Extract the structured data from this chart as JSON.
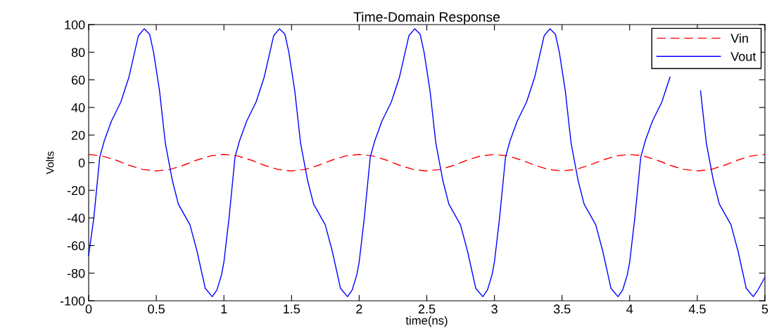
{
  "chart_data": {
    "type": "line",
    "title": "Time-Domain Response",
    "xlabel": "time(ns)",
    "ylabel": "Volts",
    "xlim": [
      0,
      5
    ],
    "ylim": [
      -100,
      100
    ],
    "xticks": [
      0,
      0.5,
      1,
      1.5,
      2,
      2.5,
      3,
      3.5,
      4,
      4.5,
      5
    ],
    "yticks": [
      -100,
      -80,
      -60,
      -40,
      -20,
      0,
      20,
      40,
      60,
      80,
      100
    ],
    "grid": false,
    "legend": "top right",
    "marker": "none",
    "series": [
      {
        "name": "Vin",
        "color": "#ff0000",
        "line_style": "dashed",
        "x": [
          0,
          0.1,
          0.2,
          0.3,
          0.4,
          0.5,
          0.6,
          0.7,
          0.8,
          0.9,
          1,
          1.1,
          1.2,
          1.3,
          1.4,
          1.5,
          1.6,
          1.7,
          1.8,
          1.9,
          2,
          2.1,
          2.2,
          2.3,
          2.4,
          2.5,
          2.6,
          2.7,
          2.8,
          2.9,
          3,
          3.1,
          3.2,
          3.3,
          3.4,
          3.5,
          3.6,
          3.7,
          3.8,
          3.9,
          4,
          4.1,
          4.2,
          4.3,
          4.4,
          4.5,
          4.6,
          4.7,
          4.8,
          4.9,
          5
        ],
        "values": [
          6,
          4.9,
          1.9,
          -1.9,
          -4.9,
          -6,
          -4.9,
          -1.9,
          1.9,
          4.9,
          6,
          4.9,
          1.9,
          -1.9,
          -4.9,
          -6,
          -4.9,
          -1.9,
          1.9,
          4.9,
          6,
          4.9,
          1.9,
          -1.9,
          -4.9,
          -6,
          -4.9,
          -1.9,
          1.9,
          4.9,
          6,
          4.9,
          1.9,
          -1.9,
          -4.9,
          -6,
          -4.9,
          -1.9,
          1.9,
          4.9,
          6,
          4.9,
          1.9,
          -1.9,
          -4.9,
          -6,
          -4.9,
          -1.9,
          1.9,
          4.9,
          6
        ]
      },
      {
        "name": "Vout",
        "color": "#0000ff",
        "line_style": "solid",
        "x": [
          0,
          0.038,
          0.082,
          0.116,
          0.168,
          0.238,
          0.298,
          0.368,
          0.411,
          0.451,
          0.48,
          0.524,
          0.567,
          0.619,
          0.663,
          0.749,
          0.801,
          0.862,
          0.914,
          0.949,
          0.983,
          1,
          1.038,
          1.082,
          1.116,
          1.168,
          1.238,
          1.298,
          1.368,
          1.411,
          1.451,
          1.48,
          1.524,
          1.567,
          1.619,
          1.663,
          1.749,
          1.801,
          1.862,
          1.914,
          1.949,
          1.983,
          2,
          2.038,
          2.082,
          2.116,
          2.168,
          2.238,
          2.298,
          2.368,
          2.411,
          2.451,
          2.48,
          2.524,
          2.567,
          2.619,
          2.663,
          2.749,
          2.801,
          2.862,
          2.914,
          2.949,
          2.983,
          3,
          3.038,
          3.082,
          3.116,
          3.168,
          3.238,
          3.298,
          3.368,
          3.411,
          3.451,
          3.48,
          3.524,
          3.567,
          3.619,
          3.663,
          3.749,
          3.801,
          3.862,
          3.914,
          3.949,
          3.983,
          4,
          4.038,
          4.082,
          4.116,
          4.168,
          4.238,
          4.298,
          4.368,
          4.411,
          4.451,
          4.48,
          4.524,
          4.567,
          4.619,
          4.663,
          4.749,
          4.801,
          4.862,
          4.914,
          4.949,
          5
        ],
        "values": [
          -67,
          -40,
          4,
          16,
          30,
          44,
          62,
          92,
          97,
          93,
          80,
          52,
          14,
          -13,
          -30,
          -45,
          -64,
          -91,
          -97,
          -92,
          -81,
          -72,
          -40,
          4,
          16,
          30,
          44,
          62,
          92,
          97,
          93,
          80,
          52,
          14,
          -13,
          -30,
          -45,
          -64,
          -91,
          -97,
          -92,
          -81,
          -72,
          -40,
          4,
          16,
          30,
          44,
          62,
          92,
          97,
          93,
          80,
          52,
          14,
          -13,
          -30,
          -45,
          -64,
          -91,
          -97,
          -92,
          -81,
          -72,
          -40,
          4,
          16,
          30,
          44,
          62,
          92,
          97,
          93,
          80,
          52,
          14,
          -13,
          -30,
          -45,
          -64,
          -91,
          -97,
          -92,
          -81,
          -72,
          -40,
          4,
          16,
          30,
          44,
          62,
          null,
          null,
          null,
          null,
          52,
          14,
          -13,
          -30,
          -45,
          -64,
          -91,
          -97,
          -92,
          -83
        ]
      }
    ]
  }
}
